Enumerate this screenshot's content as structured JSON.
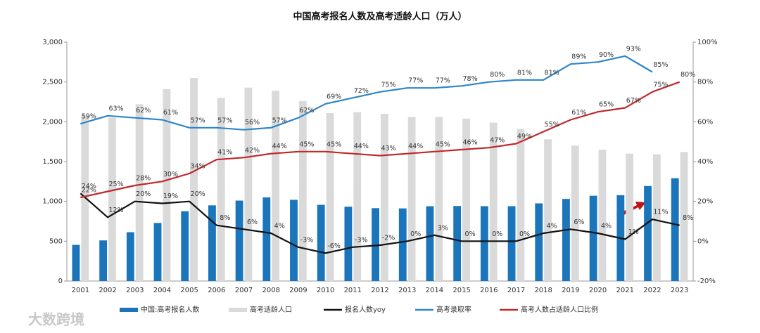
{
  "chart_data": {
    "type": "bar",
    "title": "中国高考报名人数及高考适龄人口（万人）",
    "categories": [
      "2001",
      "2002",
      "2003",
      "2004",
      "2005",
      "2006",
      "2007",
      "2008",
      "2009",
      "2010",
      "2011",
      "2012",
      "2013",
      "2014",
      "2015",
      "2016",
      "2017",
      "2018",
      "2019",
      "2020",
      "2021",
      "2022",
      "2023"
    ],
    "series": [
      {
        "name": "中国:高考报名人数",
        "type": "bar",
        "color": "#1a75bb",
        "values": [
          454,
          510,
          613,
          729,
          877,
          950,
          1010,
          1050,
          1020,
          957,
          933,
          915,
          912,
          939,
          942,
          940,
          940,
          975,
          1031,
          1071,
          1078,
          1193,
          1291
        ]
      },
      {
        "name": "高考适龄人口",
        "type": "bar",
        "color": "#dadada",
        "values": [
          2080,
          2050,
          2220,
          2410,
          2550,
          2300,
          2430,
          2390,
          2260,
          2110,
          2120,
          2100,
          2060,
          2060,
          2040,
          1990,
          1910,
          1780,
          1700,
          1650,
          1600,
          1590,
          1620
        ]
      },
      {
        "name": "报名人数yoy",
        "type": "line",
        "axis": "y2",
        "color": "#111111",
        "values": [
          24,
          12,
          20,
          19,
          20,
          8,
          6,
          4,
          -3,
          -6,
          -3,
          -2,
          0,
          3,
          0,
          0,
          0,
          4,
          6,
          4,
          1,
          11,
          8
        ],
        "value_labels": [
          "24%",
          "12%",
          "20%",
          "19%",
          "20%",
          "8%",
          "6%",
          "4%",
          "-3%",
          "-6%",
          "-3%",
          "-2%",
          "0%",
          "3%",
          "0%",
          "0%",
          "0%",
          "4%",
          "6%",
          "4%",
          "1%",
          "11%",
          "8%"
        ]
      },
      {
        "name": "高考录取率",
        "type": "line",
        "axis": "y2",
        "color": "#2e86c8",
        "values": [
          59,
          63,
          62,
          61,
          57,
          57,
          56,
          57,
          62,
          69,
          72,
          75,
          77,
          77,
          78,
          80,
          81,
          81,
          89,
          90,
          93,
          85,
          null
        ],
        "value_labels": [
          "59%",
          "63%",
          "62%",
          "61%",
          "57%",
          "57%",
          "56%",
          "57%",
          "62%",
          "69%",
          "72%",
          "75%",
          "77%",
          "77%",
          "78%",
          "80%",
          "81%",
          "81%",
          "89%",
          "90%",
          "93%",
          "85%",
          null
        ]
      },
      {
        "name": "高考人数占适龄人口比例",
        "type": "line",
        "axis": "y2",
        "color": "#c0282a",
        "values": [
          22,
          25,
          28,
          30,
          34,
          41,
          42,
          44,
          45,
          45,
          44,
          43,
          44,
          45,
          46,
          47,
          49,
          55,
          61,
          65,
          67,
          75,
          80
        ],
        "value_labels": [
          "22%",
          "25%",
          "28%",
          "30%",
          "34%",
          "41%",
          "42%",
          "44%",
          "45%",
          "45%",
          "44%",
          "43%",
          "44%",
          "45%",
          "46%",
          "47%",
          "49%",
          "55%",
          "61%",
          "65%",
          "67%",
          "75%",
          "80%"
        ]
      }
    ],
    "ylim": [
      0,
      3000
    ],
    "yticks": [
      0,
      500,
      {
        "value": 1000,
        "label": "1,000"
      },
      {
        "value": 1500,
        "label": "1,500"
      },
      {
        "value": 2000,
        "label": "2,000"
      },
      {
        "value": 2500,
        "label": "2,500"
      },
      {
        "value": 3000,
        "label": "3,000"
      }
    ],
    "y2lim": [
      -20,
      100
    ],
    "y2ticks": [
      {
        "value": -20,
        "label": "-20%"
      },
      {
        "value": 0,
        "label": "0%"
      },
      {
        "value": 20,
        "label": "20%"
      },
      {
        "value": 40,
        "label": "40%"
      },
      {
        "value": 60,
        "label": "60%"
      },
      {
        "value": 80,
        "label": "80%"
      },
      {
        "value": 100,
        "label": "100%"
      }
    ],
    "legend": "bottom",
    "watermark": "大数跨境"
  }
}
